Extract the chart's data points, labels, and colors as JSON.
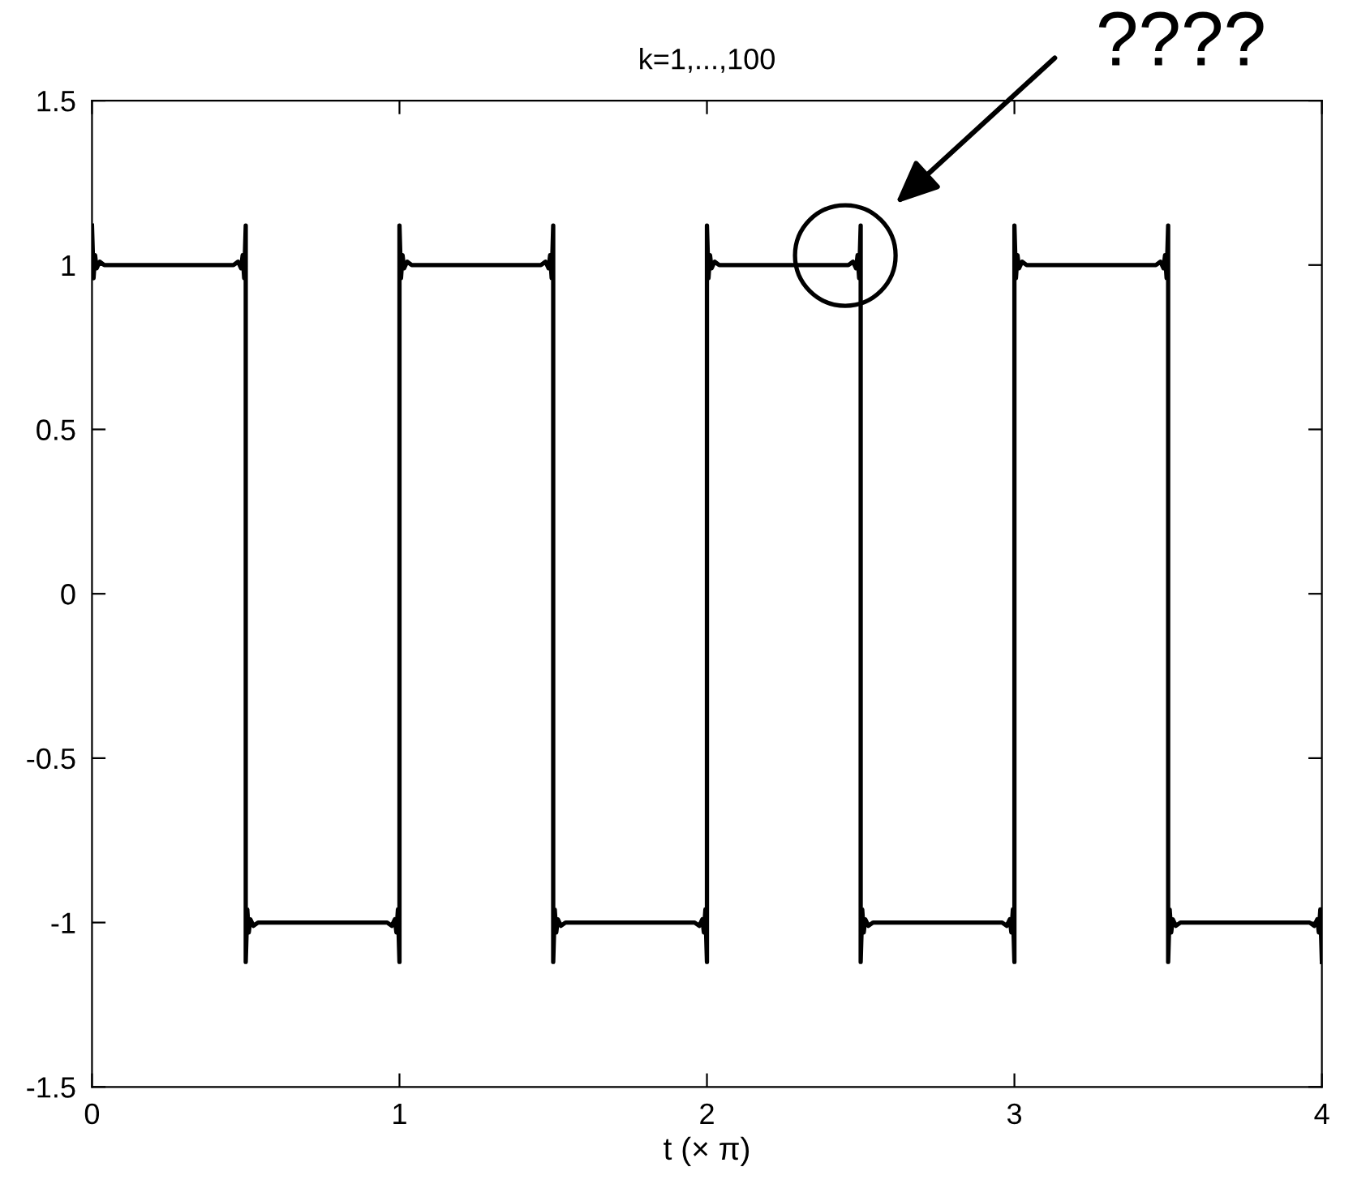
{
  "chart_data": {
    "type": "line",
    "title": "k=1,...,100",
    "xlabel": "t (× π)",
    "x": [
      0,
      0.005,
      0.01,
      0.015,
      0.025,
      0.04,
      0.46,
      0.475,
      0.485,
      0.49,
      0.495,
      0.5,
      0.5,
      0.505,
      0.51,
      0.515,
      0.525,
      0.54,
      0.96,
      0.975,
      0.985,
      0.99,
      0.995,
      1,
      1,
      1.005,
      1.01,
      1.015,
      1.025,
      1.04,
      1.46,
      1.475,
      1.485,
      1.49,
      1.495,
      1.5,
      1.5,
      1.505,
      1.51,
      1.515,
      1.525,
      1.54,
      1.96,
      1.975,
      1.985,
      1.99,
      1.995,
      2,
      2,
      2.005,
      2.01,
      2.015,
      2.025,
      2.04,
      2.46,
      2.475,
      2.485,
      2.49,
      2.495,
      2.5,
      2.5,
      2.505,
      2.51,
      2.515,
      2.525,
      2.54,
      2.96,
      2.975,
      2.985,
      2.99,
      2.995,
      3,
      3,
      3.005,
      3.01,
      3.015,
      3.025,
      3.04,
      3.46,
      3.475,
      3.485,
      3.49,
      3.495,
      3.5,
      3.5,
      3.505,
      3.51,
      3.515,
      3.525,
      3.54,
      3.96,
      3.975,
      3.985,
      3.99,
      3.995,
      4
    ],
    "series": [
      {
        "color": "#000000",
        "values": [
          1.12,
          0.96,
          1.03,
          0.99,
          1.01,
          1,
          1,
          1.01,
          0.99,
          1.03,
          0.96,
          1.12,
          -1.12,
          -0.96,
          -1.03,
          -0.99,
          -1.01,
          -1,
          -1,
          -1.01,
          -0.99,
          -1.03,
          -0.96,
          -1.12,
          1.12,
          0.96,
          1.03,
          0.99,
          1.01,
          1,
          1,
          1.01,
          0.99,
          1.03,
          0.96,
          1.12,
          -1.12,
          -0.96,
          -1.03,
          -0.99,
          -1.01,
          -1,
          -1,
          -1.01,
          -0.99,
          -1.03,
          -0.96,
          -1.12,
          1.12,
          0.96,
          1.03,
          0.99,
          1.01,
          1,
          1,
          1.01,
          0.99,
          1.03,
          0.96,
          1.12,
          -1.12,
          -0.96,
          -1.03,
          -0.99,
          -1.01,
          -1,
          -1,
          -1.01,
          -0.99,
          -1.03,
          -0.96,
          -1.12,
          1.12,
          0.96,
          1.03,
          0.99,
          1.01,
          1,
          1,
          1.01,
          0.99,
          1.03,
          0.96,
          1.12,
          -1.12,
          -0.96,
          -1.03,
          -0.99,
          -1.01,
          -1,
          -1,
          -1.01,
          -0.99,
          -1.03,
          -0.96,
          -1.12
        ]
      }
    ],
    "xlim": [
      0,
      4
    ],
    "ylim": [
      -1.5,
      1.5
    ],
    "xticks": [
      0,
      1,
      2,
      3,
      4
    ],
    "yticks": [
      -1.5,
      -1,
      -0.5,
      0,
      0.5,
      1,
      1.5
    ],
    "line_style": "solid",
    "annotations": [
      "????"
    ]
  }
}
